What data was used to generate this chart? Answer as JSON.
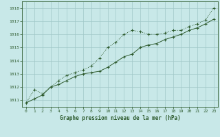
{
  "line1_x": [
    0,
    1,
    2,
    3,
    4,
    5,
    6,
    7,
    8,
    9,
    10,
    11,
    12,
    13,
    14,
    15,
    16,
    17,
    18,
    19,
    20,
    21,
    22,
    23
  ],
  "line1_y": [
    1010.8,
    1011.8,
    1011.5,
    1012.0,
    1012.5,
    1012.9,
    1013.1,
    1013.3,
    1013.6,
    1014.2,
    1015.0,
    1015.4,
    1016.0,
    1016.3,
    1016.2,
    1016.0,
    1016.0,
    1016.1,
    1016.3,
    1016.3,
    1016.6,
    1016.8,
    1017.1,
    1018.0
  ],
  "line2_x": [
    0,
    1,
    2,
    3,
    4,
    5,
    6,
    7,
    8,
    9,
    10,
    11,
    12,
    13,
    14,
    15,
    16,
    17,
    18,
    19,
    20,
    21,
    22,
    23
  ],
  "line2_y": [
    1010.8,
    1011.1,
    1011.4,
    1012.0,
    1012.2,
    1012.5,
    1012.8,
    1013.0,
    1013.1,
    1013.2,
    1013.5,
    1013.9,
    1014.3,
    1014.5,
    1015.0,
    1015.2,
    1015.3,
    1015.6,
    1015.8,
    1016.0,
    1016.3,
    1016.5,
    1016.8,
    1017.15
  ],
  "line_color": "#2d5a2d",
  "bg_color": "#c8e8e8",
  "grid_color": "#a0c8c8",
  "xlabel": "Graphe pression niveau de la mer (hPa)",
  "xlim": [
    -0.5,
    23.5
  ],
  "ylim": [
    1010.5,
    1018.5
  ],
  "yticks": [
    1011,
    1012,
    1013,
    1014,
    1015,
    1016,
    1017,
    1018
  ],
  "xticks": [
    0,
    1,
    2,
    3,
    4,
    5,
    6,
    7,
    8,
    9,
    10,
    11,
    12,
    13,
    14,
    15,
    16,
    17,
    18,
    19,
    20,
    21,
    22,
    23
  ],
  "marker": "+"
}
